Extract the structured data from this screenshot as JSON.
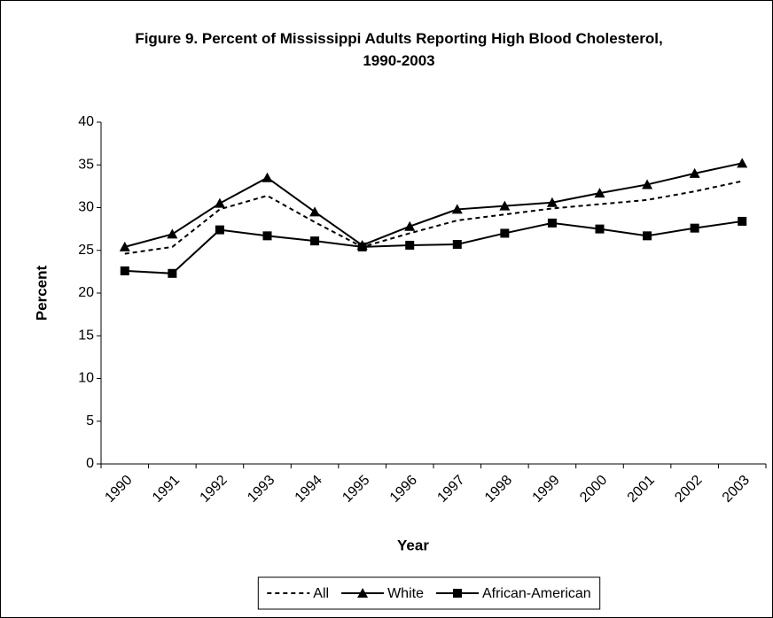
{
  "chart_data": {
    "type": "line",
    "title": "Figure 9. Percent of Mississippi Adults Reporting High Blood Cholesterol, 1990-2003",
    "x_label": "Year",
    "y_label": "Percent",
    "categories": [
      "1990",
      "1991",
      "1992",
      "1993",
      "1994",
      "1995",
      "1996",
      "1997",
      "1998",
      "1999",
      "2000",
      "2001",
      "2002",
      "2003"
    ],
    "series": [
      {
        "name": "All",
        "color": "#000000",
        "dash": "dashed",
        "marker": "none",
        "values": [
          24.6,
          25.4,
          29.8,
          31.4,
          28.3,
          25.4,
          27.0,
          28.5,
          29.2,
          29.9,
          30.4,
          30.9,
          31.9,
          33.1
        ]
      },
      {
        "name": "White",
        "color": "#000000",
        "dash": "solid",
        "marker": "triangle",
        "values": [
          25.4,
          26.9,
          30.5,
          33.5,
          29.5,
          25.6,
          27.8,
          29.8,
          30.2,
          30.6,
          31.7,
          32.7,
          34.0,
          35.2
        ]
      },
      {
        "name": "African-American",
        "color": "#000000",
        "dash": "solid",
        "marker": "square",
        "values": [
          22.6,
          22.3,
          27.4,
          26.7,
          26.1,
          25.4,
          25.6,
          25.7,
          27.0,
          28.2,
          27.5,
          26.7,
          27.6,
          28.4
        ]
      }
    ],
    "ylim": [
      0,
      40
    ],
    "yticks": [
      0,
      5,
      10,
      15,
      20,
      25,
      30,
      35,
      40
    ],
    "grid": false,
    "legend": "bottom"
  }
}
